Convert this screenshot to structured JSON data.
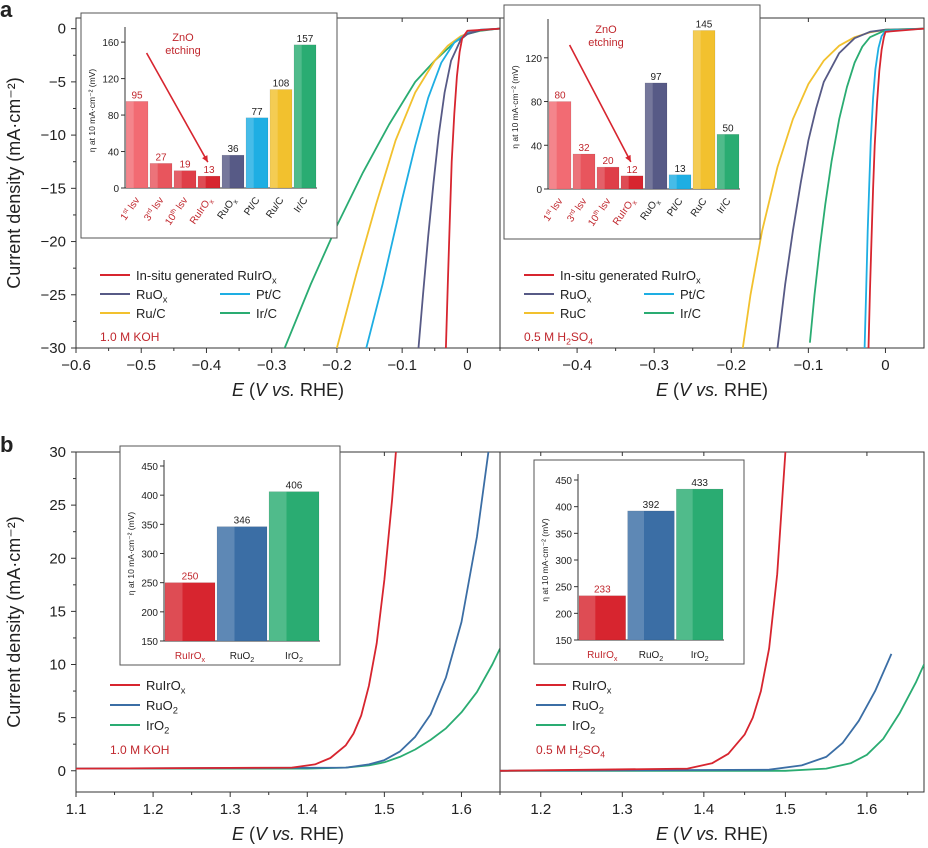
{
  "figure": {
    "panel_a_label": "a",
    "panel_b_label": "b",
    "colors": {
      "red": "#d7252f",
      "navy": "#575a86",
      "blue": "#1eaee3",
      "yellow": "#f2c12e",
      "green": "#2aac72",
      "steel": "#3b6ea5",
      "axis": "#333333"
    }
  },
  "chart_data": [
    {
      "id": "her-koh",
      "type": "line",
      "title": "",
      "ylabel": "Current density (mA·cm⁻²)",
      "xlabel": "E (V vs. RHE)",
      "xlim": [
        -0.6,
        0.05
      ],
      "ylim": [
        -30,
        1
      ],
      "xticks": [
        -0.6,
        -0.5,
        -0.4,
        -0.3,
        -0.2,
        -0.1,
        0.0
      ],
      "yticks": [
        0,
        -5,
        -10,
        -15,
        -20,
        -25,
        -30
      ],
      "electrolyte": "1.0 M KOH",
      "legend": [
        {
          "name": "In-situ generated RuIrOx",
          "color": "#d7252f"
        },
        {
          "name": "RuOx",
          "color": "#575a86"
        },
        {
          "name": "Pt/C",
          "color": "#1eaee3"
        },
        {
          "name": "Ru/C",
          "color": "#f2c12e"
        },
        {
          "name": "Ir/C",
          "color": "#2aac72"
        }
      ],
      "series": [
        {
          "name": "Ir/C",
          "color": "#2aac72",
          "x": [
            -0.28,
            -0.24,
            -0.2,
            -0.16,
            -0.12,
            -0.08,
            -0.05,
            -0.02,
            0.0,
            0.02,
            0.04,
            0.05
          ],
          "y": [
            -30,
            -24,
            -18.5,
            -13.5,
            -9,
            -5,
            -3,
            -1.3,
            -0.5,
            -0.2,
            -0.05,
            0
          ]
        },
        {
          "name": "Ru/C",
          "color": "#f2c12e",
          "x": [
            -0.2,
            -0.17,
            -0.14,
            -0.11,
            -0.08,
            -0.05,
            -0.03,
            -0.01,
            0.01,
            0.03,
            0.05
          ],
          "y": [
            -30,
            -23,
            -16.5,
            -10.5,
            -6,
            -3,
            -1.6,
            -0.7,
            -0.25,
            -0.07,
            0
          ]
        },
        {
          "name": "Pt/C",
          "color": "#1eaee3",
          "x": [
            -0.155,
            -0.13,
            -0.1,
            -0.08,
            -0.06,
            -0.04,
            -0.02,
            0.0,
            0.02,
            0.05
          ],
          "y": [
            -30,
            -24,
            -16,
            -11,
            -6.5,
            -3.2,
            -1.3,
            -0.4,
            -0.1,
            0
          ]
        },
        {
          "name": "RuOx",
          "color": "#575a86",
          "x": [
            -0.075,
            -0.068,
            -0.06,
            -0.052,
            -0.044,
            -0.035,
            -0.025,
            -0.01,
            0.0,
            0.02,
            0.05
          ],
          "y": [
            -30,
            -25,
            -19.5,
            -14.5,
            -10,
            -6,
            -3,
            -1,
            -0.5,
            -0.15,
            0
          ]
        },
        {
          "name": "In-situ generated RuIrOx",
          "color": "#d7252f",
          "x": [
            -0.033,
            -0.03,
            -0.027,
            -0.024,
            -0.02,
            -0.016,
            -0.012,
            -0.008,
            0.0,
            0.05
          ],
          "y": [
            -30,
            -24,
            -18,
            -12.5,
            -8,
            -4.5,
            -2.2,
            -0.9,
            -0.2,
            0
          ]
        }
      ],
      "inset": {
        "type": "bar",
        "ylabel": "η at 10 mA·cm⁻² (mV)",
        "ylim": [
          0,
          170
        ],
        "yticks": [
          0,
          40,
          80,
          120,
          160
        ],
        "categories": [
          "1st lsv",
          "3rd lsv",
          "10th lsv",
          "RuIrOx",
          "RuOx",
          "Pt/C",
          "Ru/C",
          "Ir/C"
        ],
        "values": [
          95,
          27,
          19,
          13,
          36,
          77,
          108,
          157
        ],
        "colors": [
          "#f26b73",
          "#e8555d",
          "#df3e48",
          "#d7252f",
          "#575a86",
          "#1eaee3",
          "#f2c12e",
          "#2aac72"
        ],
        "red_labels": [
          true,
          true,
          true,
          true,
          false,
          false,
          false,
          false
        ],
        "annotation": "ZnO\netching"
      }
    },
    {
      "id": "her-h2so4",
      "type": "line",
      "xlabel": "E (V vs. RHE)",
      "xlim": [
        -0.5,
        0.05
      ],
      "ylim": [
        -30,
        1
      ],
      "xticks": [
        -0.4,
        -0.3,
        -0.2,
        -0.1,
        0.0
      ],
      "electrolyte": "0.5 M H2SO4",
      "legend": [
        {
          "name": "In-situ generated RuIrOx",
          "color": "#d7252f"
        },
        {
          "name": "RuOx",
          "color": "#575a86"
        },
        {
          "name": "Pt/C",
          "color": "#1eaee3"
        },
        {
          "name": "RuC",
          "color": "#f2c12e"
        },
        {
          "name": "Ir/C",
          "color": "#2aac72"
        }
      ],
      "series": [
        {
          "name": "RuC",
          "color": "#f2c12e",
          "x": [
            -0.185,
            -0.175,
            -0.16,
            -0.14,
            -0.12,
            -0.1,
            -0.08,
            -0.06,
            -0.04,
            -0.02,
            0.0,
            0.05
          ],
          "y": [
            -30,
            -25,
            -19,
            -13,
            -8.5,
            -5.2,
            -3,
            -1.6,
            -0.8,
            -0.35,
            -0.1,
            0
          ]
        },
        {
          "name": "RuOx",
          "color": "#575a86",
          "x": [
            -0.14,
            -0.13,
            -0.12,
            -0.11,
            -0.1,
            -0.09,
            -0.08,
            -0.06,
            -0.04,
            -0.02,
            0.0,
            0.05
          ],
          "y": [
            -30,
            -24,
            -19,
            -14.5,
            -10.5,
            -7.5,
            -5,
            -2.3,
            -0.9,
            -0.3,
            -0.1,
            0
          ]
        },
        {
          "name": "Ir/C",
          "color": "#2aac72",
          "x": [
            -0.098,
            -0.092,
            -0.085,
            -0.078,
            -0.07,
            -0.06,
            -0.05,
            -0.04,
            -0.03,
            -0.02,
            0.0,
            0.05
          ],
          "y": [
            -29.5,
            -25,
            -20.5,
            -16.5,
            -12.5,
            -8.5,
            -5.5,
            -3.2,
            -1.7,
            -0.8,
            -0.15,
            0
          ]
        },
        {
          "name": "Pt/C",
          "color": "#1eaee3",
          "x": [
            -0.027,
            -0.025,
            -0.023,
            -0.021,
            -0.019,
            -0.016,
            -0.013,
            -0.009,
            -0.005,
            0.0,
            0.05
          ],
          "y": [
            -30,
            -24.5,
            -19,
            -14.5,
            -10.5,
            -6.5,
            -3.8,
            -1.8,
            -0.7,
            -0.2,
            0
          ]
        },
        {
          "name": "In-situ generated RuIrOx",
          "color": "#d7252f",
          "x": [
            -0.022,
            -0.02,
            -0.018,
            -0.016,
            -0.014,
            -0.011,
            -0.008,
            -0.005,
            -0.002,
            0.0,
            0.05
          ],
          "y": [
            -30,
            -24.5,
            -19.5,
            -15,
            -11,
            -7,
            -4,
            -2,
            -0.8,
            -0.3,
            0
          ]
        }
      ],
      "inset": {
        "type": "bar",
        "ylabel": "η at 10 mA·cm⁻² (mV)",
        "ylim": [
          0,
          150
        ],
        "yticks": [
          0,
          40,
          80,
          120
        ],
        "categories": [
          "1st lsv",
          "3rd lsv",
          "10th lsv",
          "RuIrOx",
          "RuOx",
          "Pt/C",
          "RuC",
          "Ir/C"
        ],
        "values": [
          80,
          32,
          20,
          12,
          97,
          13,
          145,
          50
        ],
        "colors": [
          "#f26b73",
          "#e8555d",
          "#df3e48",
          "#d7252f",
          "#575a86",
          "#1eaee3",
          "#f2c12e",
          "#2aac72"
        ],
        "red_labels": [
          true,
          true,
          true,
          true,
          false,
          false,
          false,
          false
        ],
        "annotation": "ZnO\netching"
      }
    },
    {
      "id": "oer-koh",
      "type": "line",
      "ylabel": "Current density (mA·cm⁻²)",
      "xlabel": "E (V vs. RHE)",
      "xlim": [
        1.1,
        1.65
      ],
      "ylim": [
        -2,
        30
      ],
      "xticks": [
        1.1,
        1.2,
        1.3,
        1.4,
        1.5,
        1.6
      ],
      "yticks": [
        0,
        5,
        10,
        15,
        20,
        25,
        30
      ],
      "electrolyte": "1.0 M KOH",
      "legend": [
        {
          "name": "RuIrOx",
          "color": "#d7252f"
        },
        {
          "name": "RuO2",
          "color": "#3b6ea5"
        },
        {
          "name": "IrO2",
          "color": "#2aac72"
        }
      ],
      "series": [
        {
          "name": "IrO2",
          "color": "#2aac72",
          "x": [
            1.1,
            1.4,
            1.45,
            1.48,
            1.5,
            1.52,
            1.54,
            1.56,
            1.58,
            1.6,
            1.62,
            1.64,
            1.65
          ],
          "y": [
            0.2,
            0.2,
            0.3,
            0.5,
            0.8,
            1.3,
            2,
            2.9,
            4,
            5.5,
            7.4,
            10,
            11.5
          ]
        },
        {
          "name": "RuO2",
          "color": "#3b6ea5",
          "x": [
            1.1,
            1.45,
            1.48,
            1.5,
            1.52,
            1.54,
            1.56,
            1.58,
            1.6,
            1.62,
            1.635
          ],
          "y": [
            0.2,
            0.3,
            0.6,
            1.0,
            1.8,
            3.2,
            5.3,
            8.8,
            14,
            22,
            30
          ]
        },
        {
          "name": "RuIrOx",
          "color": "#d7252f",
          "x": [
            1.1,
            1.38,
            1.41,
            1.43,
            1.45,
            1.46,
            1.47,
            1.48,
            1.49,
            1.5,
            1.51,
            1.515
          ],
          "y": [
            0.2,
            0.3,
            0.6,
            1.2,
            2.4,
            3.5,
            5.2,
            8,
            12,
            18,
            25.5,
            30
          ]
        }
      ],
      "inset": {
        "type": "bar",
        "ylabel": "η at 10 mA·cm⁻² (mV)",
        "ylim": [
          150,
          450
        ],
        "yticks": [
          150,
          200,
          250,
          300,
          350,
          400,
          450
        ],
        "categories": [
          "RuIrOx",
          "RuO2",
          "IrO2"
        ],
        "values": [
          250,
          346,
          406
        ],
        "colors": [
          "#d7252f",
          "#3b6ea5",
          "#2aac72"
        ],
        "red_labels": [
          true,
          false,
          false
        ]
      }
    },
    {
      "id": "oer-h2so4",
      "type": "line",
      "xlabel": "E (V vs. RHE)",
      "xlim": [
        1.15,
        1.67
      ],
      "ylim": [
        -2,
        30
      ],
      "xticks": [
        1.2,
        1.3,
        1.4,
        1.5,
        1.6
      ],
      "electrolyte": "0.5 M H2SO4",
      "legend": [
        {
          "name": "RuIrOx",
          "color": "#d7252f"
        },
        {
          "name": "RuO2",
          "color": "#3b6ea5"
        },
        {
          "name": "IrO2",
          "color": "#2aac72"
        }
      ],
      "series": [
        {
          "name": "IrO2",
          "color": "#2aac72",
          "x": [
            1.15,
            1.5,
            1.55,
            1.58,
            1.6,
            1.62,
            1.64,
            1.66,
            1.67
          ],
          "y": [
            0,
            0,
            0.2,
            0.7,
            1.5,
            3,
            5.4,
            8.3,
            10
          ]
        },
        {
          "name": "RuO2",
          "color": "#3b6ea5",
          "x": [
            1.15,
            1.48,
            1.52,
            1.55,
            1.57,
            1.59,
            1.61,
            1.63
          ],
          "y": [
            0,
            0.1,
            0.5,
            1.3,
            2.6,
            4.7,
            7.5,
            11
          ]
        },
        {
          "name": "RuIrOx",
          "color": "#d7252f",
          "x": [
            1.15,
            1.38,
            1.41,
            1.43,
            1.45,
            1.46,
            1.47,
            1.48,
            1.49,
            1.5
          ],
          "y": [
            0,
            0.2,
            0.7,
            1.6,
            3.4,
            5,
            7.5,
            11.5,
            18.5,
            30
          ]
        }
      ],
      "inset": {
        "type": "bar",
        "ylabel": "η at 10 mA·cm⁻² (mV)",
        "ylim": [
          150,
          450
        ],
        "yticks": [
          150,
          200,
          250,
          300,
          350,
          400,
          450
        ],
        "categories": [
          "RuIrOx",
          "RuO2",
          "IrO2"
        ],
        "values": [
          233,
          392,
          433
        ],
        "colors": [
          "#d7252f",
          "#3b6ea5",
          "#2aac72"
        ],
        "red_labels": [
          true,
          false,
          false
        ]
      }
    }
  ]
}
